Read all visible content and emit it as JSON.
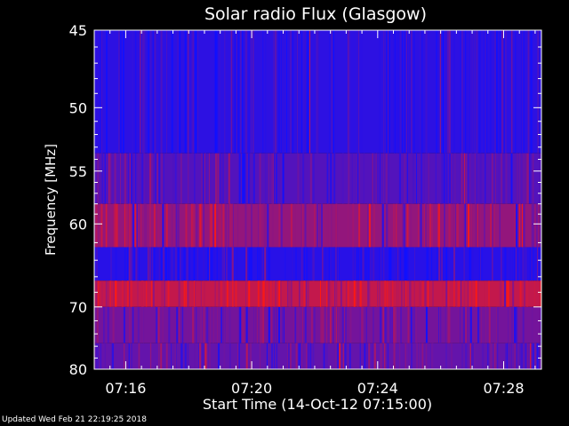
{
  "chart_data": {
    "type": "heatmap",
    "title": "Solar radio Flux (Glasgow)",
    "xlabel": "Start Time (14-Oct-12 07:15:00)",
    "ylabel": "Frequency [MHz]",
    "x_ticks": [
      "07:16",
      "07:20",
      "07:24",
      "07:28"
    ],
    "x_tick_minutes": [
      1,
      5,
      9,
      13
    ],
    "x_range_minutes": [
      0,
      14.2
    ],
    "y_ticks": [
      45,
      50,
      55,
      60,
      70,
      80
    ],
    "y_range": [
      45,
      80
    ],
    "y_scale": "reciprocal",
    "colors": {
      "low": "#1010ff",
      "high": "#ff1010"
    },
    "bands": [
      {
        "from": 45,
        "to": 53.5,
        "intensity": 0.12
      },
      {
        "from": 53.5,
        "to": 58,
        "intensity": 0.28
      },
      {
        "from": 58,
        "to": 62.5,
        "intensity": 0.55
      },
      {
        "from": 62.5,
        "to": 66.5,
        "intensity": 0.1
      },
      {
        "from": 66.5,
        "to": 70,
        "intensity": 0.75
      },
      {
        "from": 70,
        "to": 75.5,
        "intensity": 0.42
      },
      {
        "from": 75.5,
        "to": 80,
        "intensity": 0.35
      }
    ]
  },
  "footer": {
    "updated": "Updated Wed Feb 21 22:19:25 2018"
  }
}
